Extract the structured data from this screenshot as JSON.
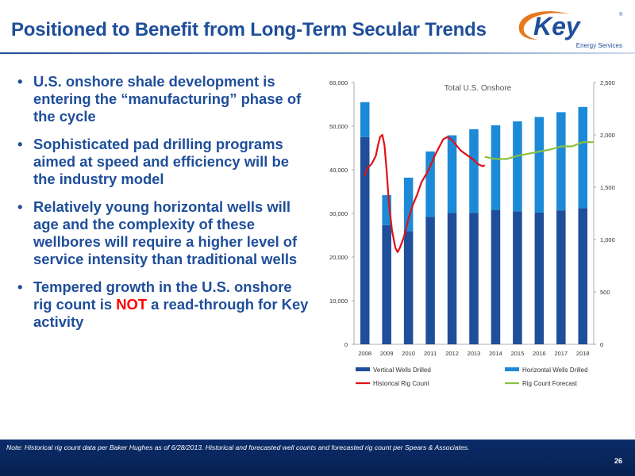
{
  "header": {
    "title": "Positioned to Benefit from Long-Term Secular Trends",
    "logo_text": "Key",
    "logo_subtext": "Energy Services",
    "logo_mark": "®"
  },
  "bullets": [
    {
      "text": "U.S. onshore shale development is entering the “manufacturing” phase of the cycle"
    },
    {
      "text": "Sophisticated pad drilling programs aimed at speed and efficiency will be the industry model"
    },
    {
      "text": "Relatively young horizontal wells will age and the complexity of these wellbores will require a higher level of service intensity than traditional wells"
    },
    {
      "text_before": "Tempered growth in the U.S. onshore rig count is ",
      "highlight": "NOT",
      "text_after": " a read-through for Key activity"
    }
  ],
  "bullet_symbol": "•",
  "footer": {
    "note": "Note: Historical rig count data per Baker Hughes as of 6/28/2013. Historical and forecasted well counts and forecasted rig count per Spears & Associates.",
    "page_number": "26"
  },
  "colors": {
    "title_blue": "#1f4e9a",
    "vertical_bar": "#1f4e9a",
    "horizontal_bar": "#1c8ad6",
    "historical_rig": "#e0101a",
    "rig_forecast": "#8cbf3f",
    "footer_bg": "#0b2c6a",
    "highlight_red": "#ff0000"
  },
  "chart_data": {
    "type": "bar",
    "title": "Total U.S. Onshore",
    "categories": [
      "2008",
      "2009",
      "2010",
      "2011",
      "2012",
      "2013",
      "2014",
      "2015",
      "2016",
      "2017",
      "2018"
    ],
    "stacked": true,
    "series": [
      {
        "name": "Vertical Wells Drilled",
        "axis": "left",
        "values": [
          47500,
          27300,
          25900,
          29200,
          30100,
          30100,
          30800,
          30500,
          30200,
          30700,
          31200
        ]
      },
      {
        "name": "Horizontal Wells Drilled",
        "axis": "left",
        "values": [
          8000,
          6900,
          12300,
          15000,
          17800,
          19200,
          19400,
          20600,
          21900,
          22500,
          23200
        ]
      }
    ],
    "lines": [
      {
        "name": "Historical Rig Count",
        "axis": "right",
        "x": [
          2008.0,
          2008.1,
          2008.3,
          2008.5,
          2008.6,
          2008.7,
          2008.8,
          2008.9,
          2009.0,
          2009.1,
          2009.25,
          2009.4,
          2009.5,
          2009.6,
          2009.8,
          2010.0,
          2010.2,
          2010.4,
          2010.6,
          2010.8,
          2011.0,
          2011.2,
          2011.4,
          2011.6,
          2011.8,
          2012.0,
          2012.2,
          2012.4,
          2012.6,
          2012.8,
          2013.0,
          2013.2,
          2013.4,
          2013.5
        ],
        "y": [
          1610,
          1680,
          1720,
          1800,
          1900,
          1980,
          2000,
          1900,
          1650,
          1350,
          1080,
          920,
          880,
          920,
          1030,
          1200,
          1330,
          1430,
          1550,
          1620,
          1700,
          1800,
          1880,
          1960,
          1980,
          1950,
          1900,
          1850,
          1820,
          1790,
          1760,
          1720,
          1700,
          1710
        ]
      },
      {
        "name": "Rig Count Forecast",
        "axis": "right",
        "x": [
          2013.5,
          2014,
          2014.5,
          2015,
          2015.5,
          2016,
          2016.5,
          2017,
          2017.5,
          2018,
          2018.5
        ],
        "y": [
          1790,
          1770,
          1770,
          1800,
          1820,
          1840,
          1860,
          1890,
          1890,
          1930,
          1930
        ]
      }
    ],
    "ylim": [
      0,
      60000
    ],
    "yticks": [
      "0",
      "10,000",
      "20,000",
      "30,000",
      "40,000",
      "50,000",
      "60,000"
    ],
    "y2lim": [
      0,
      2500
    ],
    "y2ticks": [
      "0",
      "500",
      "1,000",
      "1,500",
      "2,000",
      "2,500"
    ],
    "grid": false,
    "legend_position": "bottom"
  }
}
